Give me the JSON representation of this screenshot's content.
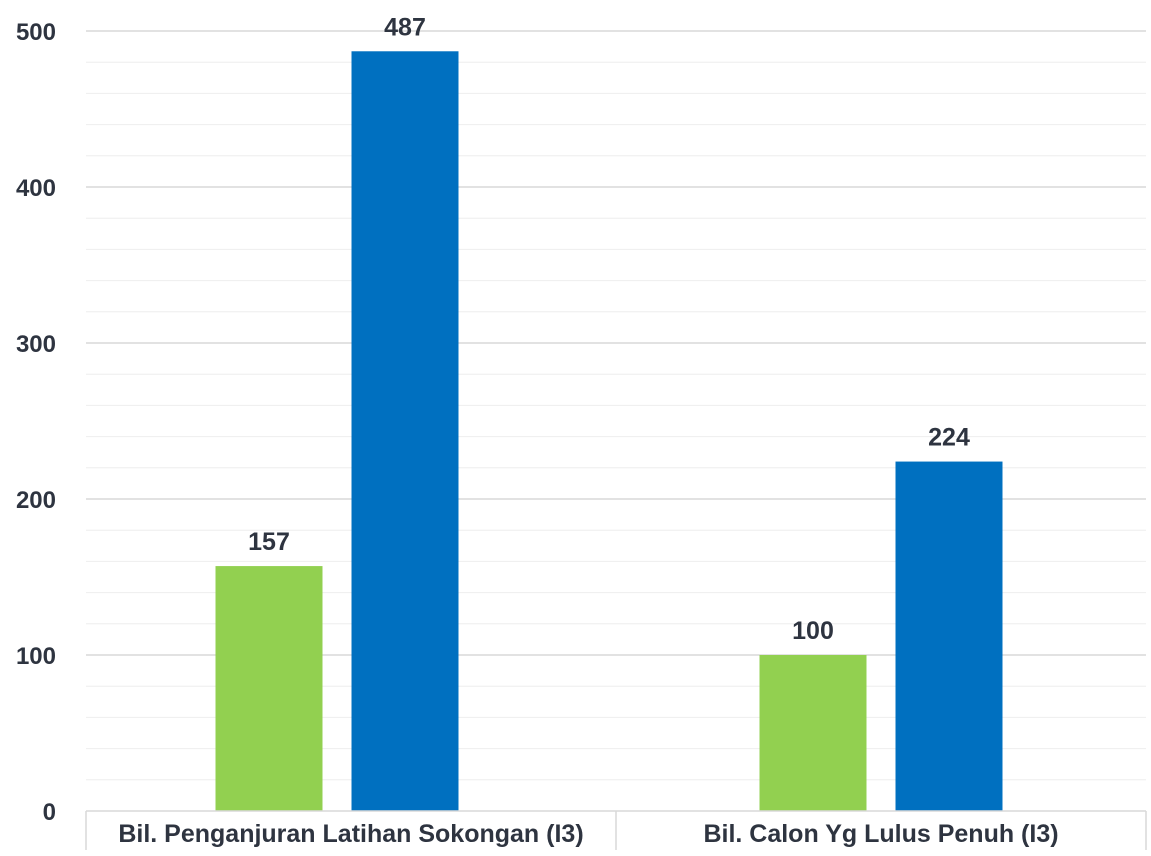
{
  "chart_data": {
    "type": "bar",
    "categories": [
      "Bil. Penganjuran Latihan Sokongan (I3)",
      "Bil.  Calon Yg Lulus Penuh (I3)"
    ],
    "series": [
      {
        "values": [
          157,
          100
        ],
        "color": "#92d050"
      },
      {
        "values": [
          487,
          224
        ],
        "color": "#0070c0"
      }
    ],
    "ylim": [
      0,
      500
    ],
    "yticks": [
      0,
      100,
      200,
      300,
      400,
      500
    ],
    "minor_gridlines": true,
    "grid": true,
    "axis_text_color": "#2e3440",
    "grid_color": "#d9d9d9"
  }
}
